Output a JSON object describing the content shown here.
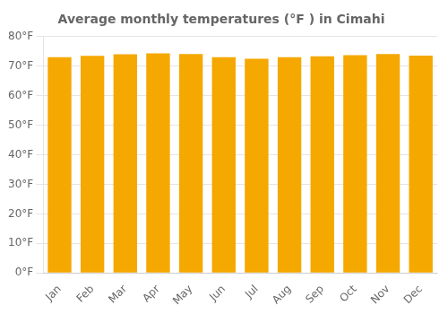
{
  "chart_data": {
    "type": "bar",
    "title": "Average monthly temperatures (°F ) in Cimahi",
    "categories": [
      "Jan",
      "Feb",
      "Mar",
      "Apr",
      "May",
      "Jun",
      "Jul",
      "Aug",
      "Sep",
      "Oct",
      "Nov",
      "Dec"
    ],
    "values": [
      73.0,
      73.5,
      74.0,
      74.3,
      74.1,
      73.0,
      72.5,
      73.0,
      73.3,
      73.7,
      74.1,
      73.6
    ],
    "color": "#F5A800",
    "ylim": [
      0,
      80
    ],
    "yticks": [
      {
        "value": 0,
        "label": "0°F"
      },
      {
        "value": 10,
        "label": "10°F"
      },
      {
        "value": 20,
        "label": "20°F"
      },
      {
        "value": 30,
        "label": "30°F"
      },
      {
        "value": 40,
        "label": "40°F"
      },
      {
        "value": 50,
        "label": "50°F"
      },
      {
        "value": 60,
        "label": "60°F"
      },
      {
        "value": 70,
        "label": "70°F"
      },
      {
        "value": 80,
        "label": "80°F"
      }
    ],
    "grid": true
  }
}
